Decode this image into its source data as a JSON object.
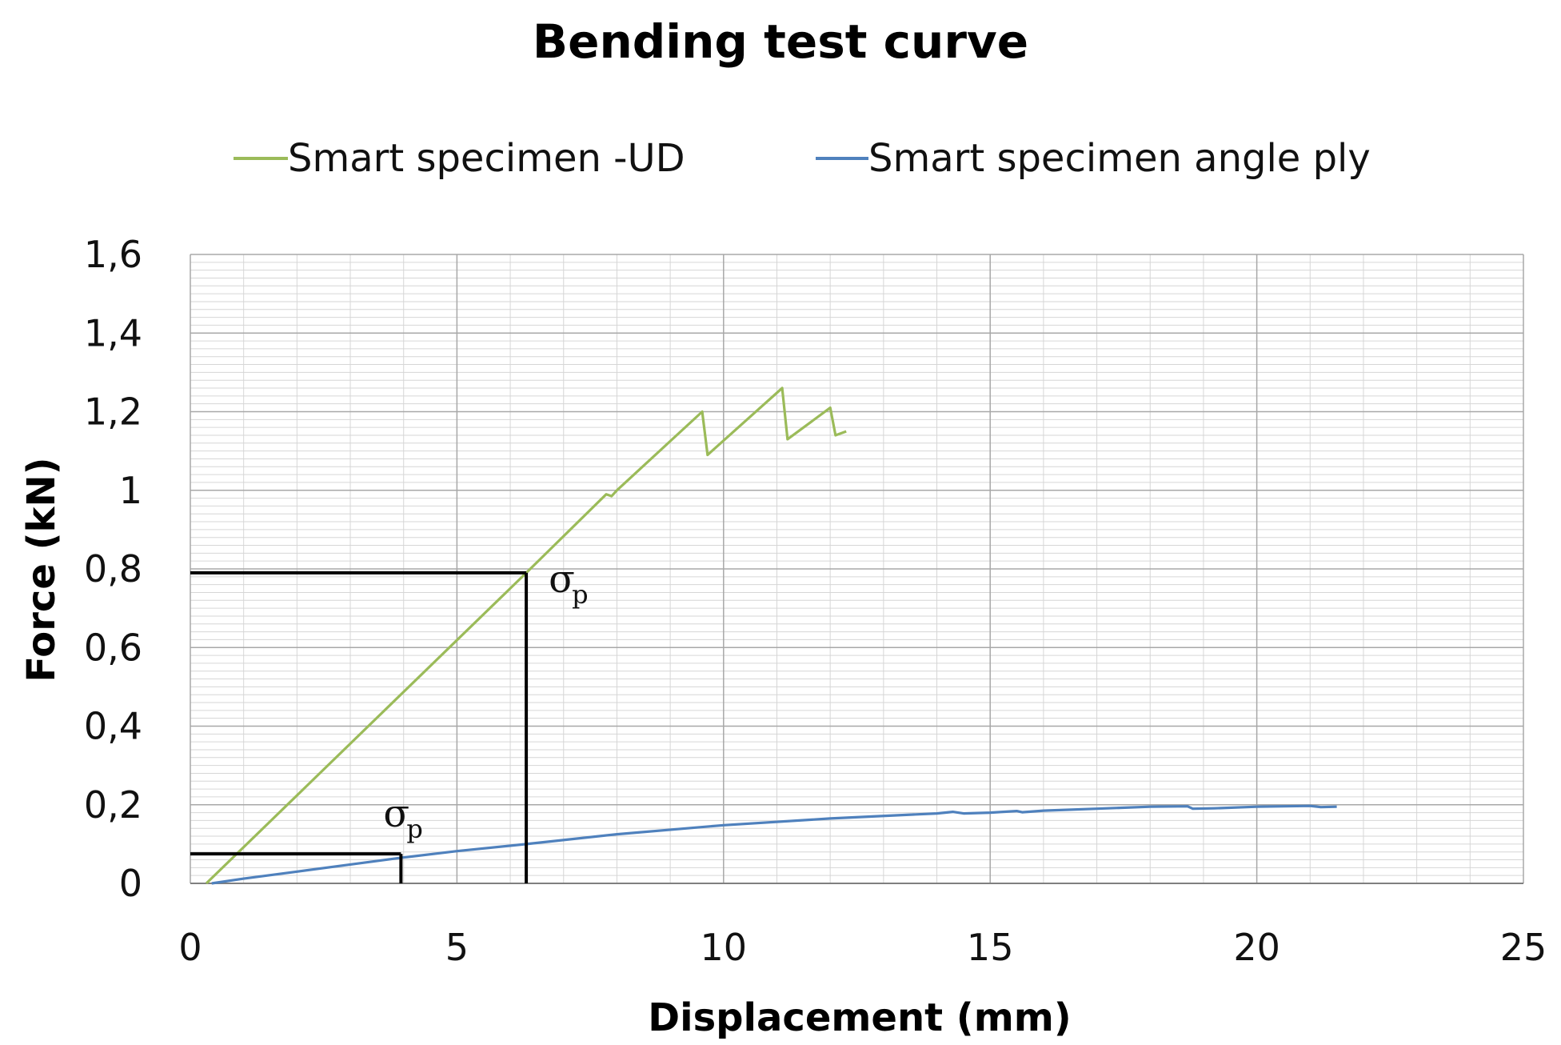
{
  "chart_data": {
    "type": "line",
    "title": "Bending test curve",
    "xlabel": "Displacement (mm)",
    "ylabel": "Force (kN)",
    "xlim": [
      0,
      25
    ],
    "ylim": [
      0,
      1.6
    ],
    "x_ticks": [
      "0",
      "5",
      "10",
      "15",
      "20",
      "25"
    ],
    "y_ticks": [
      "0",
      "0,2",
      "0,4",
      "0,6",
      "0,8",
      "1",
      "1,2",
      "1,4",
      "1,6"
    ],
    "grid": true,
    "legend_position": "top",
    "series": [
      {
        "name": "Smart specimen -UD",
        "color": "#9bbb59",
        "x": [
          0.3,
          6.3,
          7.8,
          7.9,
          8.0,
          9.6,
          9.7,
          11.1,
          11.2,
          12.0,
          12.1,
          12.3
        ],
        "y": [
          0.0,
          0.79,
          0.99,
          0.985,
          1.0,
          1.2,
          1.09,
          1.26,
          1.13,
          1.21,
          1.14,
          1.15
        ]
      },
      {
        "name": "Smart specimen angle ply",
        "color": "#4f81bd",
        "x": [
          0.4,
          1.0,
          2.0,
          3.0,
          4.0,
          5.0,
          6.3,
          8.0,
          10.0,
          12.0,
          14.0,
          14.3,
          14.5,
          15.0,
          15.5,
          15.6,
          16.0,
          17.0,
          18.0,
          18.7,
          18.8,
          19.2,
          20.0,
          21.0,
          21.2,
          21.5
        ],
        "y": [
          0.0,
          0.012,
          0.03,
          0.048,
          0.066,
          0.082,
          0.1,
          0.125,
          0.148,
          0.165,
          0.178,
          0.182,
          0.178,
          0.18,
          0.184,
          0.181,
          0.185,
          0.19,
          0.195,
          0.196,
          0.19,
          0.191,
          0.195,
          0.197,
          0.194,
          0.195
        ]
      }
    ],
    "annotations": [
      {
        "label": "σ",
        "sub": "p",
        "x": 6.3,
        "y": 0.79
      },
      {
        "label": "σ",
        "sub": "p",
        "x": 3.95,
        "y": 0.075
      }
    ]
  }
}
